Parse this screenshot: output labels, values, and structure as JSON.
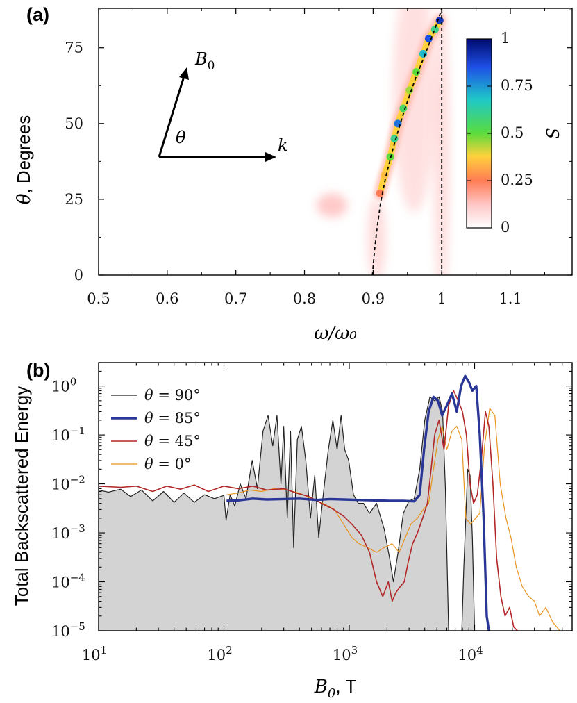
{
  "chart_data": [
    {
      "panel": "(a)",
      "type": "heatmap",
      "xlabel": "ω/ω₀",
      "ylabel_symbol": "θ",
      "ylabel_text": ", Degrees",
      "xlim": [
        0.5,
        1.19
      ],
      "ylim": [
        0,
        88
      ],
      "xticks": [
        0.5,
        0.6,
        0.7,
        0.8,
        0.9,
        1,
        1.1
      ],
      "xtick_labels": [
        "0.5",
        "0.6",
        "0.7",
        "0.8",
        "0.9",
        "1",
        "1.1"
      ],
      "yticks": [
        0,
        25,
        50,
        75
      ],
      "ytick_labels": [
        "0",
        "25",
        "50",
        "75"
      ],
      "dispersion_curve": [
        {
          "x": 0.899,
          "y": 0
        },
        {
          "x": 0.902,
          "y": 8
        },
        {
          "x": 0.906,
          "y": 16
        },
        {
          "x": 0.911,
          "y": 24
        },
        {
          "x": 0.918,
          "y": 32
        },
        {
          "x": 0.927,
          "y": 40
        },
        {
          "x": 0.937,
          "y": 48
        },
        {
          "x": 0.948,
          "y": 56
        },
        {
          "x": 0.962,
          "y": 65
        },
        {
          "x": 0.976,
          "y": 73
        },
        {
          "x": 0.988,
          "y": 80
        },
        {
          "x": 0.996,
          "y": 85
        },
        {
          "x": 1.0,
          "y": 88
        }
      ],
      "vertical_line_x": 1.0,
      "ridge_points": [
        {
          "x": 0.91,
          "y": 27,
          "s": 0.25
        },
        {
          "x": 0.917,
          "y": 33,
          "s": 0.35
        },
        {
          "x": 0.925,
          "y": 39,
          "s": 0.5
        },
        {
          "x": 0.931,
          "y": 45,
          "s": 0.6
        },
        {
          "x": 0.936,
          "y": 50,
          "s": 0.8
        },
        {
          "x": 0.944,
          "y": 55,
          "s": 0.55
        },
        {
          "x": 0.953,
          "y": 61,
          "s": 0.45
        },
        {
          "x": 0.963,
          "y": 67,
          "s": 0.5
        },
        {
          "x": 0.973,
          "y": 73,
          "s": 0.7
        },
        {
          "x": 0.981,
          "y": 78,
          "s": 0.85
        },
        {
          "x": 0.99,
          "y": 81,
          "s": 0.6
        },
        {
          "x": 0.997,
          "y": 84,
          "s": 0.9
        }
      ],
      "colorbar": {
        "label": "S",
        "ticks": [
          0,
          0.25,
          0.5,
          0.75,
          1
        ],
        "tick_labels": [
          "0",
          "0.25",
          "0.5",
          "0.75",
          "1"
        ],
        "colors": [
          "#ffffff",
          "#ffb4b4",
          "#ff5a3c",
          "#ffd23c",
          "#5adc3c",
          "#1ec8c8",
          "#1e50e6",
          "#000a6e"
        ]
      },
      "inset": {
        "vector_b": "B",
        "vector_b_sub": "0",
        "vector_k": "k",
        "angle": "θ"
      }
    },
    {
      "panel": "(b)",
      "type": "line",
      "xscale": "log",
      "yscale": "log",
      "xlabel": "B",
      "xlabel_sub": "0",
      "xlabel_unit": ", T",
      "ylabel": "Total Backscattered Energy",
      "xlim": [
        10,
        60000
      ],
      "ylim": [
        1e-05,
        3
      ],
      "xtick_labels": [
        {
          "b": "10",
          "e": "1"
        },
        {
          "b": "10",
          "e": "2"
        },
        {
          "b": "10",
          "e": "3"
        },
        {
          "b": "10",
          "e": "4"
        }
      ],
      "ytick_labels": [
        {
          "b": "10",
          "e": "0"
        },
        {
          "b": "10",
          "e": "−1"
        },
        {
          "b": "10",
          "e": "−2"
        },
        {
          "b": "10",
          "e": "−3"
        },
        {
          "b": "10",
          "e": "−4"
        },
        {
          "b": "10",
          "e": "−5"
        }
      ],
      "series": [
        {
          "name": "θ = 90°",
          "legend_symbol": "θ",
          "legend_value": " = 90°",
          "color": "#222222",
          "width": 1.2,
          "filled": true,
          "points": [
            [
              10,
              0.0075
            ],
            [
              12,
              0.0068
            ],
            [
              15,
              0.0078
            ],
            [
              18,
              0.0055
            ],
            [
              22,
              0.0075
            ],
            [
              27,
              0.0045
            ],
            [
              33,
              0.007
            ],
            [
              40,
              0.0042
            ],
            [
              48,
              0.0065
            ],
            [
              58,
              0.0042
            ],
            [
              70,
              0.006
            ],
            [
              84,
              0.005
            ],
            [
              100,
              0.0058
            ],
            [
              104,
              0.0018
            ],
            [
              112,
              0.006
            ],
            [
              122,
              0.0035
            ],
            [
              135,
              0.01
            ],
            [
              150,
              0.005
            ],
            [
              168,
              0.03
            ],
            [
              185,
              0.008
            ],
            [
              205,
              0.12
            ],
            [
              225,
              0.25
            ],
            [
              245,
              0.06
            ],
            [
              265,
              0.25
            ],
            [
              285,
              0.01
            ],
            [
              300,
              0.15
            ],
            [
              320,
              0.002
            ],
            [
              340,
              0.12
            ],
            [
              360,
              0.0005
            ],
            [
              385,
              0.08
            ],
            [
              415,
              0.15
            ],
            [
              450,
              0.03
            ],
            [
              490,
              0.002
            ],
            [
              530,
              0.015
            ],
            [
              570,
              0.0008
            ],
            [
              620,
              0.006
            ],
            [
              680,
              0.05
            ],
            [
              740,
              0.2
            ],
            [
              800,
              0.05
            ],
            [
              860,
              0.25
            ],
            [
              920,
              0.05
            ],
            [
              990,
              0.03
            ],
            [
              1080,
              0.006
            ],
            [
              1180,
              0.004
            ],
            [
              1300,
              0.004
            ],
            [
              1450,
              0.0025
            ],
            [
              1650,
              0.004
            ],
            [
              1900,
              0.0012
            ],
            [
              2100,
              0.0003
            ],
            [
              2250,
              0.0001
            ],
            [
              2450,
              0.0004
            ],
            [
              2700,
              0.0025
            ],
            [
              3000,
              0.0045
            ],
            [
              3300,
              0.005
            ],
            [
              3650,
              0.02
            ],
            [
              4000,
              0.2
            ],
            [
              4400,
              0.6
            ],
            [
              4800,
              0.5
            ],
            [
              5200,
              0.6
            ],
            [
              5550,
              0.3
            ],
            [
              5850,
              0.008
            ],
            [
              6200,
              1e-05
            ]
          ],
          "second_peak": [
            [
              7900,
              1e-05
            ],
            [
              8200,
              0.0002
            ],
            [
              8500,
              0.002
            ],
            [
              8800,
              0.02
            ],
            [
              9200,
              0.015
            ],
            [
              9600,
              0.0008
            ],
            [
              10000,
              1e-05
            ]
          ]
        },
        {
          "name": "θ = 85°",
          "legend_symbol": "θ",
          "legend_value": " = 85°",
          "color": "#2a3796",
          "width": 3.4,
          "filled": false,
          "points": [
            [
              105,
              0.0045
            ],
            [
              130,
              0.0046
            ],
            [
              170,
              0.005
            ],
            [
              220,
              0.0048
            ],
            [
              300,
              0.0049
            ],
            [
              400,
              0.005
            ],
            [
              550,
              0.0047
            ],
            [
              700,
              0.0049
            ],
            [
              900,
              0.0048
            ],
            [
              1200,
              0.0047
            ],
            [
              1600,
              0.0046
            ],
            [
              2100,
              0.0045
            ],
            [
              2700,
              0.0045
            ],
            [
              3300,
              0.0044
            ],
            [
              3650,
              0.006
            ],
            [
              3950,
              0.05
            ],
            [
              4300,
              0.3
            ],
            [
              4700,
              0.6
            ],
            [
              5100,
              0.5
            ],
            [
              5500,
              0.25
            ],
            [
              6000,
              0.4
            ],
            [
              6600,
              0.7
            ],
            [
              7200,
              0.3
            ],
            [
              7800,
              1.0
            ],
            [
              8400,
              1.6
            ],
            [
              9000,
              1.2
            ],
            [
              9600,
              0.8
            ],
            [
              10300,
              1.0
            ],
            [
              11000,
              0.1
            ],
            [
              11800,
              0.002
            ],
            [
              12500,
              2e-05
            ],
            [
              13000,
              1e-05
            ]
          ]
        },
        {
          "name": "θ = 45°",
          "legend_symbol": "θ",
          "legend_value": " = 45°",
          "color": "#b22727",
          "width": 1.6,
          "filled": false,
          "points": [
            [
              10,
              0.009
            ],
            [
              15,
              0.0085
            ],
            [
              20,
              0.009
            ],
            [
              27,
              0.007
            ],
            [
              35,
              0.009
            ],
            [
              45,
              0.0078
            ],
            [
              58,
              0.0095
            ],
            [
              75,
              0.007
            ],
            [
              100,
              0.009
            ],
            [
              130,
              0.008
            ],
            [
              170,
              0.009
            ],
            [
              220,
              0.0075
            ],
            [
              300,
              0.008
            ],
            [
              380,
              0.0065
            ],
            [
              480,
              0.0055
            ],
            [
              600,
              0.004
            ],
            [
              750,
              0.003
            ],
            [
              900,
              0.0022
            ],
            [
              1050,
              0.0015
            ],
            [
              1250,
              0.0009
            ],
            [
              1450,
              0.0004
            ],
            [
              1650,
              0.0001
            ],
            [
              1850,
              5e-05
            ],
            [
              2050,
              0.0001
            ],
            [
              2200,
              4e-05
            ],
            [
              2350,
              6e-05
            ],
            [
              2550,
              8e-05
            ],
            [
              2750,
              0.0001
            ],
            [
              2950,
              0.00025
            ],
            [
              3200,
              0.0006
            ],
            [
              3500,
              0.001
            ],
            [
              3850,
              0.002
            ],
            [
              4200,
              0.004
            ],
            [
              4500,
              0.02
            ],
            [
              4800,
              0.1
            ],
            [
              5200,
              0.2
            ],
            [
              5700,
              0.05
            ],
            [
              6200,
              0.4
            ],
            [
              6800,
              0.8
            ],
            [
              7400,
              0.5
            ],
            [
              8000,
              0.3
            ],
            [
              8600,
              0.1
            ],
            [
              9200,
              0.01
            ],
            [
              9800,
              0.004
            ],
            [
              10500,
              0.006
            ],
            [
              11300,
              0.03
            ],
            [
              12200,
              0.3
            ],
            [
              13000,
              0.15
            ],
            [
              14000,
              0.01
            ],
            [
              15000,
              0.0003
            ],
            [
              16200,
              5e-05
            ],
            [
              17500,
              2e-05
            ],
            [
              19000,
              3e-05
            ],
            [
              20500,
              1.2e-05
            ],
            [
              22000,
              1e-05
            ]
          ]
        },
        {
          "name": "θ = 0°",
          "legend_symbol": "θ",
          "legend_value": " = 0°",
          "color": "#e8931e",
          "width": 1.2,
          "filled": false,
          "points": [
            [
              105,
              0.006
            ],
            [
              130,
              0.0065
            ],
            [
              160,
              0.0075
            ],
            [
              200,
              0.007
            ],
            [
              250,
              0.008
            ],
            [
              320,
              0.0075
            ],
            [
              400,
              0.0065
            ],
            [
              500,
              0.005
            ],
            [
              620,
              0.004
            ],
            [
              760,
              0.003
            ],
            [
              900,
              0.0015
            ],
            [
              1050,
              0.0008
            ],
            [
              1200,
              0.0006
            ],
            [
              1400,
              0.0005
            ],
            [
              1650,
              0.0004
            ],
            [
              1900,
              0.0005
            ],
            [
              2200,
              0.0006
            ],
            [
              2500,
              0.0004
            ],
            [
              2800,
              0.0008
            ],
            [
              3100,
              0.0015
            ],
            [
              3500,
              0.002
            ],
            [
              3900,
              0.003
            ],
            [
              4300,
              0.004
            ],
            [
              4700,
              0.02
            ],
            [
              5100,
              0.08
            ],
            [
              5500,
              0.15
            ],
            [
              6000,
              0.05
            ],
            [
              6600,
              0.12
            ],
            [
              7200,
              0.15
            ],
            [
              7900,
              0.08
            ],
            [
              8500,
              0.002
            ],
            [
              9300,
              0.0015
            ],
            [
              10200,
              0.002
            ],
            [
              11000,
              0.0025
            ],
            [
              12000,
              0.06
            ],
            [
              13200,
              0.35
            ],
            [
              14500,
              0.25
            ],
            [
              16000,
              0.01
            ],
            [
              17800,
              0.002
            ],
            [
              19500,
              0.0008
            ],
            [
              21500,
              0.0002
            ],
            [
              24000,
              8e-05
            ],
            [
              27000,
              5e-05
            ],
            [
              30000,
              4e-05
            ],
            [
              33000,
              2e-05
            ],
            [
              37000,
              3e-05
            ],
            [
              42000,
              1.5e-05
            ],
            [
              48000,
              1e-05
            ]
          ]
        }
      ]
    }
  ]
}
